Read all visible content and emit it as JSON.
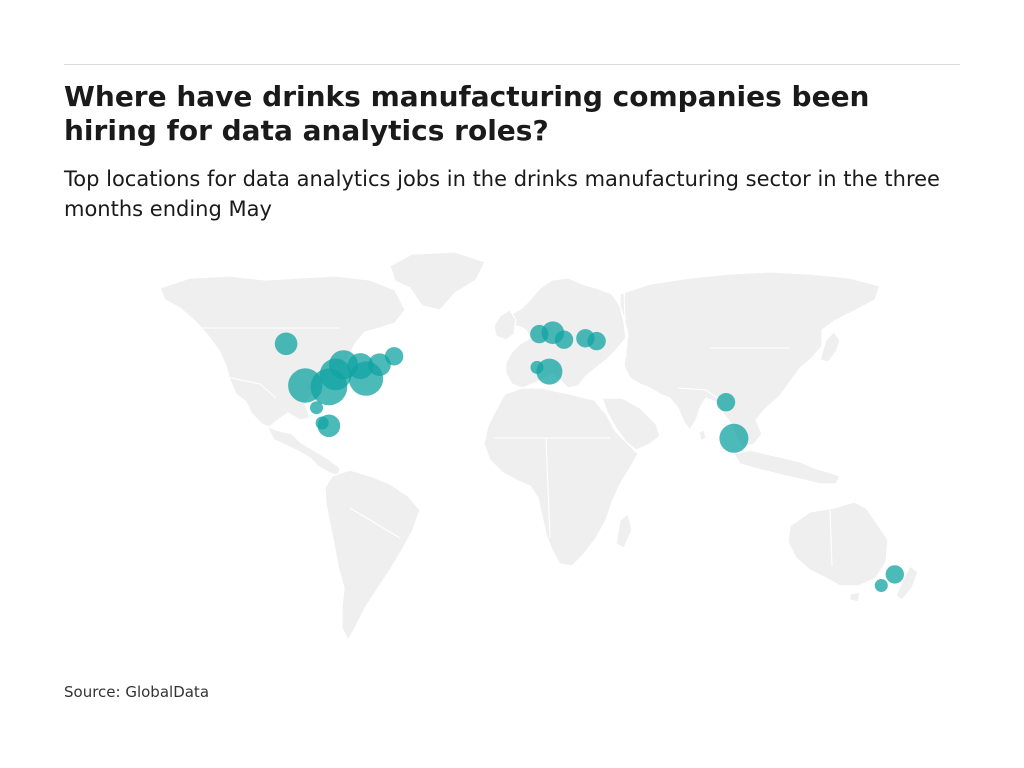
{
  "title": "Where have drinks manufacturing companies been hiring for data analytics roles?",
  "subtitle": "Top locations for data analytics jobs in the drinks manufacturing sector in the three months ending May",
  "source": "Source: GlobalData",
  "colors": {
    "land": "#efefef",
    "bubble": "#12a3a3",
    "text": "#1a1a1a"
  },
  "map_data": {
    "projection": "equirectangular",
    "marker_meaning": "relative number of data analytics job postings (bubble size)",
    "markers": [
      {
        "region": "Western Canada",
        "lon": -119.5,
        "lat": 49.5,
        "size": 3
      },
      {
        "region": "US Southwest",
        "lon": -111.0,
        "lat": 34.5,
        "size": 7
      },
      {
        "region": "US South-Central",
        "lon": -100.5,
        "lat": 34.0,
        "size": 8
      },
      {
        "region": "US Midwest",
        "lon": -94.0,
        "lat": 42.0,
        "size": 5
      },
      {
        "region": "US Central Plains",
        "lon": -97.5,
        "lat": 38.5,
        "size": 6
      },
      {
        "region": "US Southeast",
        "lon": -84.0,
        "lat": 37.0,
        "size": 7
      },
      {
        "region": "US Great Lakes",
        "lon": -86.5,
        "lat": 41.5,
        "size": 4
      },
      {
        "region": "US Northeast",
        "lon": -78.0,
        "lat": 42.0,
        "size": 3
      },
      {
        "region": "New England",
        "lon": -71.5,
        "lat": 45.0,
        "size": 2
      },
      {
        "region": "Northern Mexico",
        "lon": -106.0,
        "lat": 26.5,
        "size": 1
      },
      {
        "region": "Central Mexico",
        "lon": -100.5,
        "lat": 20.0,
        "size": 3
      },
      {
        "region": "Western Mexico",
        "lon": -103.5,
        "lat": 21.0,
        "size": 1
      },
      {
        "region": "United Kingdom",
        "lon": -1.0,
        "lat": 53.5,
        "size": 3
      },
      {
        "region": "Ireland",
        "lon": -7.0,
        "lat": 53.0,
        "size": 2
      },
      {
        "region": "Belgium / Netherlands",
        "lon": 4.0,
        "lat": 51.0,
        "size": 2
      },
      {
        "region": "Portugal",
        "lon": -8.0,
        "lat": 41.0,
        "size": 1
      },
      {
        "region": "Spain",
        "lon": -2.5,
        "lat": 39.5,
        "size": 4
      },
      {
        "region": "Central Europe",
        "lon": 13.5,
        "lat": 51.5,
        "size": 2
      },
      {
        "region": "Poland",
        "lon": 18.5,
        "lat": 50.5,
        "size": 2
      },
      {
        "region": "Northern India",
        "lon": 76.0,
        "lat": 28.5,
        "size": 2
      },
      {
        "region": "Southern India",
        "lon": 79.5,
        "lat": 15.5,
        "size": 5
      },
      {
        "region": "Eastern Australia",
        "lon": 151.0,
        "lat": -33.5,
        "size": 2
      },
      {
        "region": "Southern Australia",
        "lon": 145.0,
        "lat": -37.5,
        "size": 1
      }
    ]
  }
}
